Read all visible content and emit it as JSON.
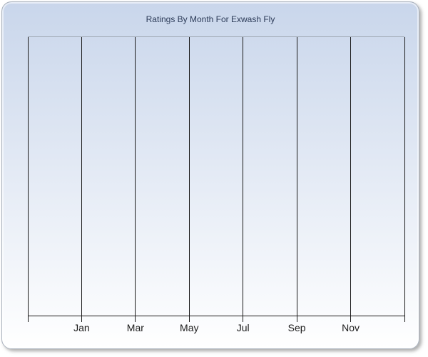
{
  "chart_data": {
    "type": "bar",
    "title": "Ratings By Month For Exwash Fly",
    "categories": [
      "Jan",
      "Mar",
      "May",
      "Jul",
      "Sep",
      "Nov"
    ],
    "series": [],
    "values": [],
    "xlabel": "",
    "ylabel": "",
    "x_intervals": 7,
    "grid": "vertical",
    "legend_visible": false,
    "y_tick_labels": []
  },
  "colors": {
    "title": "#2b3a57",
    "axis_label": "#1b1b1b",
    "gridline": "#1a1a1a",
    "axis_line": "#1a1a1a",
    "plot_top_border": "#9fa8b3",
    "panel_border": "#a9b1bd",
    "panel_gradient_top": "#c9d6eb",
    "panel_gradient_bottom": "#ffffff"
  }
}
